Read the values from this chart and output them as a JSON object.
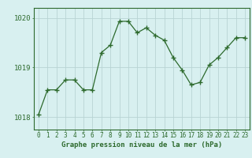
{
  "x": [
    0,
    1,
    2,
    3,
    4,
    5,
    6,
    7,
    8,
    9,
    10,
    11,
    12,
    13,
    14,
    15,
    16,
    17,
    18,
    19,
    20,
    21,
    22,
    23
  ],
  "y": [
    1018.05,
    1018.55,
    1018.55,
    1018.75,
    1018.75,
    1018.55,
    1018.55,
    1019.3,
    1019.45,
    1019.93,
    1019.93,
    1019.7,
    1019.8,
    1019.65,
    1019.55,
    1019.2,
    1018.95,
    1018.65,
    1018.7,
    1019.05,
    1019.2,
    1019.4,
    1019.6,
    1019.6
  ],
  "line_color": "#2d6a2d",
  "marker": "+",
  "marker_size": 4,
  "bg_color": "#d8f0f0",
  "grid_color": "#b8d4d4",
  "axis_color": "#2d6a2d",
  "label_color": "#2d6a2d",
  "xlabel": "Graphe pression niveau de la mer (hPa)",
  "ylim_min": 1017.75,
  "ylim_max": 1020.2,
  "yticks": [
    1018,
    1019,
    1020
  ],
  "xticks": [
    0,
    1,
    2,
    3,
    4,
    5,
    6,
    7,
    8,
    9,
    10,
    11,
    12,
    13,
    14,
    15,
    16,
    17,
    18,
    19,
    20,
    21,
    22,
    23
  ],
  "tick_fontsize": 5.5,
  "label_fontsize": 6.5,
  "ytick_fontsize": 6.5
}
